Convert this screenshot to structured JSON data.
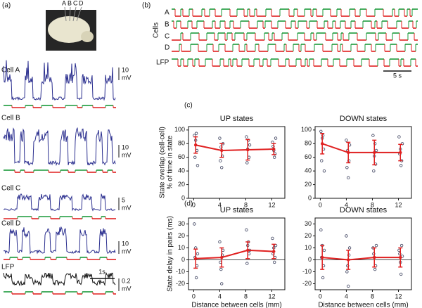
{
  "figure": {
    "panel_a": {
      "label": "(a)",
      "electrodes": [
        "A",
        "B",
        "C",
        "D"
      ],
      "traces": [
        {
          "name": "Cell A",
          "scale": [
            "10",
            "mV"
          ]
        },
        {
          "name": "Cell B",
          "scale": [
            "10",
            "mV"
          ]
        },
        {
          "name": "Cell C",
          "scale": [
            "5",
            "mV"
          ]
        },
        {
          "name": "Cell D",
          "scale": [
            "10",
            "mV"
          ]
        },
        {
          "name": "LFP",
          "scale": [
            "0.2",
            "mV"
          ]
        }
      ],
      "time_scale": "1s"
    },
    "panel_b": {
      "label": "(b)",
      "rows": [
        "A",
        "B",
        "C",
        "D",
        "LFP"
      ],
      "rows_title": "Cells",
      "time_scale": "5 s"
    },
    "panel_c": {
      "label": "(c)"
    },
    "panel_d": {
      "label": "(d)"
    }
  },
  "chart_data": [
    {
      "type": "scatter",
      "title": "UP states",
      "ylabel": [
        "State overlap (cell-cell)",
        "% of time in state"
      ],
      "xlim": [
        -0.8,
        14
      ],
      "ylim": [
        0,
        105
      ],
      "xticks": [
        0,
        4,
        8,
        12
      ],
      "yticks": [
        0,
        20,
        40,
        60,
        80,
        100
      ],
      "zero_line": false,
      "points": {
        "color": "#3a3f5c",
        "x": [
          0.1,
          0.3,
          0.5,
          0.2,
          0.4,
          0.6,
          4.0,
          4.2,
          4.4,
          4.1,
          4.3,
          4.5,
          8.1,
          8.3,
          8.5,
          8.2,
          8.4,
          8.6,
          12.1,
          12.3,
          12.5,
          12.2,
          12.4,
          12.6
        ],
        "values": [
          92,
          85,
          70,
          60,
          95,
          48,
          88,
          75,
          62,
          55,
          45,
          80,
          90,
          72,
          60,
          52,
          85,
          78,
          82,
          70,
          65,
          76,
          60,
          88
        ]
      },
      "mean": {
        "color": "#e02020",
        "x": [
          0.3,
          4.3,
          8.3,
          12.3
        ],
        "values": [
          78,
          70,
          71,
          72
        ],
        "errors": [
          12,
          10,
          15,
          8
        ]
      }
    },
    {
      "type": "scatter",
      "title": "DOWN states",
      "xlim": [
        -0.8,
        14
      ],
      "ylim": [
        0,
        105
      ],
      "xticks": [
        0,
        4,
        8,
        12
      ],
      "yticks": [
        0,
        20,
        40,
        60,
        80,
        100
      ],
      "zero_line": false,
      "points": {
        "color": "#3a3f5c",
        "x": [
          0.1,
          0.3,
          0.5,
          0.2,
          0.4,
          0.6,
          4.0,
          4.2,
          4.4,
          4.1,
          4.3,
          4.5,
          8.1,
          8.3,
          8.5,
          8.2,
          8.4,
          8.6,
          12.1,
          12.3,
          12.5,
          12.2,
          12.4,
          12.6
        ],
        "values": [
          98,
          88,
          72,
          55,
          92,
          40,
          85,
          70,
          55,
          45,
          30,
          78,
          92,
          62,
          50,
          40,
          80,
          70,
          90,
          72,
          55,
          65,
          48,
          80
        ]
      },
      "mean": {
        "color": "#e02020",
        "x": [
          0.3,
          4.3,
          8.3,
          12.3
        ],
        "values": [
          80,
          67,
          67,
          67
        ],
        "errors": [
          15,
          15,
          18,
          12
        ]
      }
    },
    {
      "type": "scatter",
      "title": "UP states",
      "ylabel": [
        "State delay in pairs (ms)"
      ],
      "x_label": "Distance between cells (mm)",
      "xlim": [
        -0.8,
        14
      ],
      "ylim": [
        -25,
        35
      ],
      "xticks": [
        0,
        4,
        8,
        12
      ],
      "yticks": [
        -20,
        -10,
        0,
        10,
        20,
        30
      ],
      "zero_line": true,
      "points": {
        "color": "#3a3f5c",
        "x": [
          0.1,
          0.3,
          0.5,
          0.2,
          0.4,
          0.6,
          4.0,
          4.2,
          4.4,
          4.1,
          4.3,
          4.5,
          8.1,
          8.3,
          8.5,
          8.2,
          8.4,
          8.6,
          12.1,
          12.3,
          12.5,
          12.2,
          12.4,
          12.6
        ],
        "values": [
          30,
          10,
          -5,
          2,
          -15,
          5,
          15,
          -8,
          4,
          -2,
          -20,
          8,
          25,
          12,
          5,
          -3,
          15,
          8,
          18,
          10,
          2,
          5,
          -2,
          12
        ]
      },
      "mean": {
        "color": "#e02020",
        "x": [
          0.3,
          4.3,
          8.3,
          12.3
        ],
        "values": [
          1,
          2,
          8,
          7
        ],
        "errors": [
          8,
          8,
          7,
          6
        ]
      }
    },
    {
      "type": "scatter",
      "title": "DOWN states",
      "x_label": "Distance between cells (mm)",
      "xlim": [
        -0.8,
        14
      ],
      "ylim": [
        -25,
        35
      ],
      "xticks": [
        0,
        4,
        8,
        12
      ],
      "yticks": [
        -20,
        -10,
        0,
        10,
        20,
        30
      ],
      "zero_line": true,
      "points": {
        "color": "#3a3f5c",
        "x": [
          0.1,
          0.3,
          0.5,
          0.2,
          0.4,
          0.6,
          4.0,
          4.2,
          4.4,
          4.1,
          4.3,
          4.5,
          8.1,
          8.3,
          8.5,
          8.2,
          8.4,
          8.6,
          12.1,
          12.3,
          12.5,
          12.2,
          12.4,
          12.6
        ],
        "values": [
          25,
          12,
          -5,
          2,
          -15,
          8,
          20,
          -5,
          4,
          -10,
          -22,
          10,
          10,
          2,
          -5,
          5,
          -8,
          12,
          8,
          -2,
          12,
          5,
          -12,
          3
        ]
      },
      "mean": {
        "color": "#e02020",
        "x": [
          0.3,
          4.3,
          8.3,
          12.3
        ],
        "values": [
          2,
          0,
          2,
          2
        ],
        "errors": [
          10,
          8,
          8,
          8
        ]
      }
    }
  ]
}
